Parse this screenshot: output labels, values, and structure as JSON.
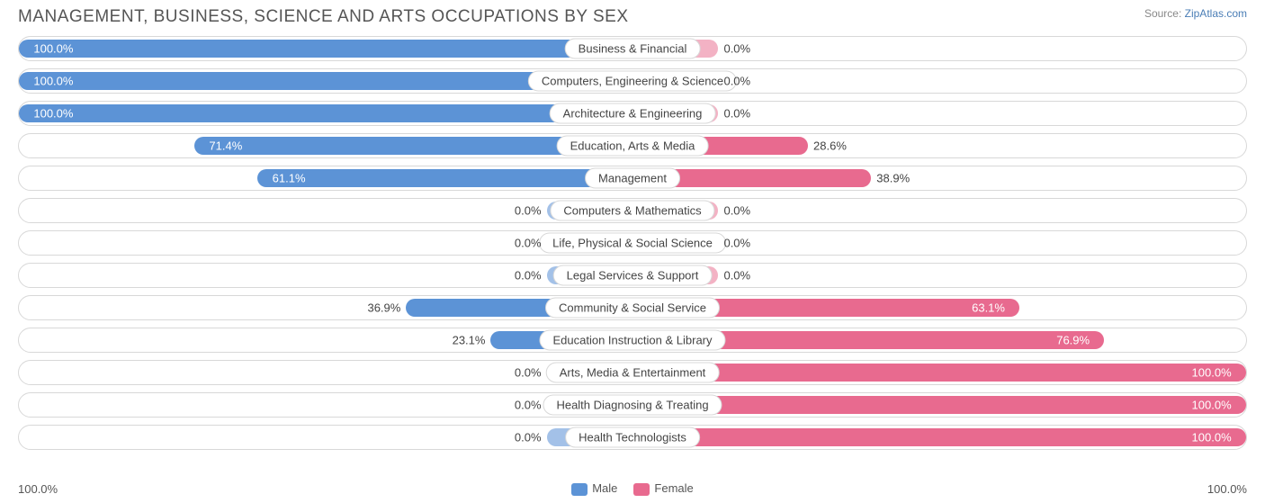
{
  "title": "MANAGEMENT, BUSINESS, SCIENCE AND ARTS OCCUPATIONS BY SEX",
  "source_prefix": "Source: ",
  "source_link": "ZipAtlas.com",
  "chart": {
    "type": "diverging-bar",
    "male_color_strong": "#5c93d6",
    "male_color_weak": "#a3c1e8",
    "female_color_strong": "#e86a8f",
    "female_color_weak": "#f3b2c4",
    "track_border": "#d8d8d8",
    "text_dark": "#444444",
    "text_light": "#ffffff",
    "center_bar_width_pct": 7,
    "rows": [
      {
        "label": "Business & Financial",
        "male": 100.0,
        "female": 0.0
      },
      {
        "label": "Computers, Engineering & Science",
        "male": 100.0,
        "female": 0.0
      },
      {
        "label": "Architecture & Engineering",
        "male": 100.0,
        "female": 0.0
      },
      {
        "label": "Education, Arts & Media",
        "male": 71.4,
        "female": 28.6
      },
      {
        "label": "Management",
        "male": 61.1,
        "female": 38.9
      },
      {
        "label": "Computers & Mathematics",
        "male": 0.0,
        "female": 0.0
      },
      {
        "label": "Life, Physical & Social Science",
        "male": 0.0,
        "female": 0.0
      },
      {
        "label": "Legal Services & Support",
        "male": 0.0,
        "female": 0.0
      },
      {
        "label": "Community & Social Service",
        "male": 36.9,
        "female": 63.1
      },
      {
        "label": "Education Instruction & Library",
        "male": 23.1,
        "female": 76.9
      },
      {
        "label": "Arts, Media & Entertainment",
        "male": 0.0,
        "female": 100.0
      },
      {
        "label": "Health Diagnosing & Treating",
        "male": 0.0,
        "female": 100.0
      },
      {
        "label": "Health Technologists",
        "male": 0.0,
        "female": 100.0
      }
    ]
  },
  "axis_left": "100.0%",
  "axis_right": "100.0%",
  "legend": {
    "male": "Male",
    "female": "Female"
  }
}
